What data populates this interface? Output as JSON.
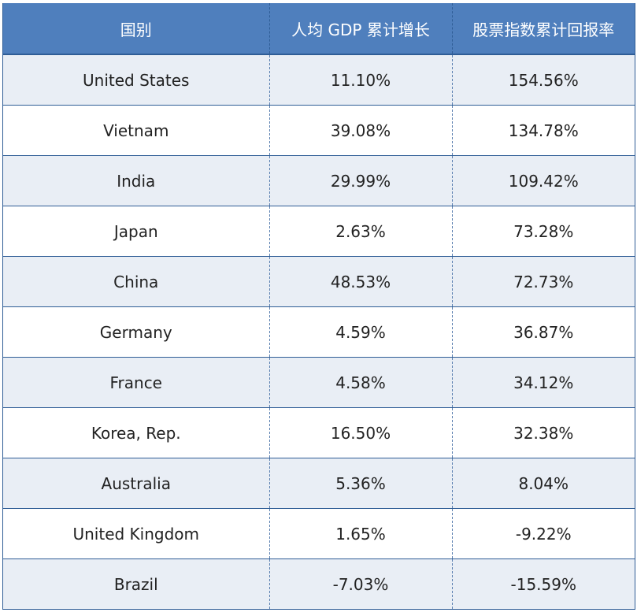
{
  "chart_data": {
    "type": "table",
    "columns": [
      "国别",
      "人均 GDP 累计增长",
      "股票指数累计回报率"
    ],
    "rows": [
      [
        "United States",
        "11.10%",
        "154.56%"
      ],
      [
        "Vietnam",
        "39.08%",
        "134.78%"
      ],
      [
        "India",
        "29.99%",
        "109.42%"
      ],
      [
        "Japan",
        "2.63%",
        "73.28%"
      ],
      [
        "China",
        "48.53%",
        "72.73%"
      ],
      [
        "Germany",
        "4.59%",
        "36.87%"
      ],
      [
        "France",
        "4.58%",
        "34.12%"
      ],
      [
        "Korea, Rep.",
        "16.50%",
        "32.38%"
      ],
      [
        "Australia",
        "5.36%",
        "8.04%"
      ],
      [
        "United Kingdom",
        "1.65%",
        "-9.22%"
      ],
      [
        "Brazil",
        "-7.03%",
        "-15.59%"
      ]
    ],
    "colors": {
      "header_bg": "#4f7fbd",
      "header_text": "#ffffff",
      "row_alt_bg": "#e9eef5",
      "row_bg": "#ffffff",
      "border": "#2f5d96"
    }
  }
}
